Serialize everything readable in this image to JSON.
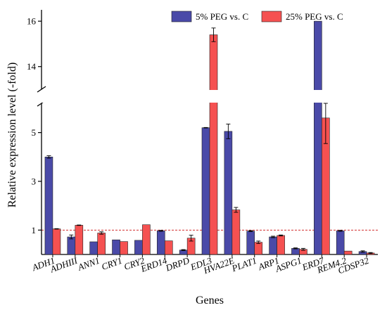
{
  "chart_data": {
    "type": "bar",
    "xlabel": "Genes",
    "ylabel": "Relative expression level (-fold)",
    "categories": [
      "ADH1",
      "ADHIII",
      "ANN1",
      "CRY1",
      "CRY2",
      "ERD14",
      "DRPD",
      "EDL3",
      "HVA22E",
      "PLAT1",
      "ARP1",
      "ASPG1",
      "ERD7",
      "REM4.2",
      "CDSP32"
    ],
    "series": [
      {
        "name": "5% PEG vs. C",
        "color": "#4a4aa8",
        "values": [
          4.0,
          0.72,
          0.52,
          0.6,
          0.58,
          0.97,
          0.18,
          5.2,
          5.05,
          0.96,
          0.72,
          0.25,
          16.0,
          0.97,
          0.12
        ],
        "errors": [
          0.05,
          0.08,
          0.0,
          0.0,
          0.0,
          0.02,
          0.02,
          0.01,
          0.3,
          0.02,
          0.03,
          0.02,
          0.0,
          0.02,
          0.03
        ]
      },
      {
        "name": "25% PEG vs. C",
        "color": "#f55151",
        "values": [
          1.05,
          1.2,
          0.88,
          0.53,
          1.22,
          0.56,
          0.67,
          15.4,
          1.83,
          0.5,
          0.78,
          0.21,
          5.6,
          0.14,
          0.06
        ],
        "errors": [
          0.01,
          0.01,
          0.05,
          0.0,
          0.0,
          0.0,
          0.12,
          0.3,
          0.1,
          0.05,
          0.02,
          0.04,
          1.05,
          0.0,
          0.02
        ]
      }
    ],
    "y_axis_lower": {
      "range": [
        0,
        6.2
      ],
      "ticks": [
        1,
        3,
        5
      ]
    },
    "y_axis_upper": {
      "range": [
        13,
        16.5
      ],
      "ticks": [
        14,
        16
      ]
    },
    "axis_break": true,
    "reference_line": {
      "y": 1,
      "color": "#d32f2f",
      "style": "dashed"
    },
    "legend_placement": "top-right",
    "grid": false
  }
}
